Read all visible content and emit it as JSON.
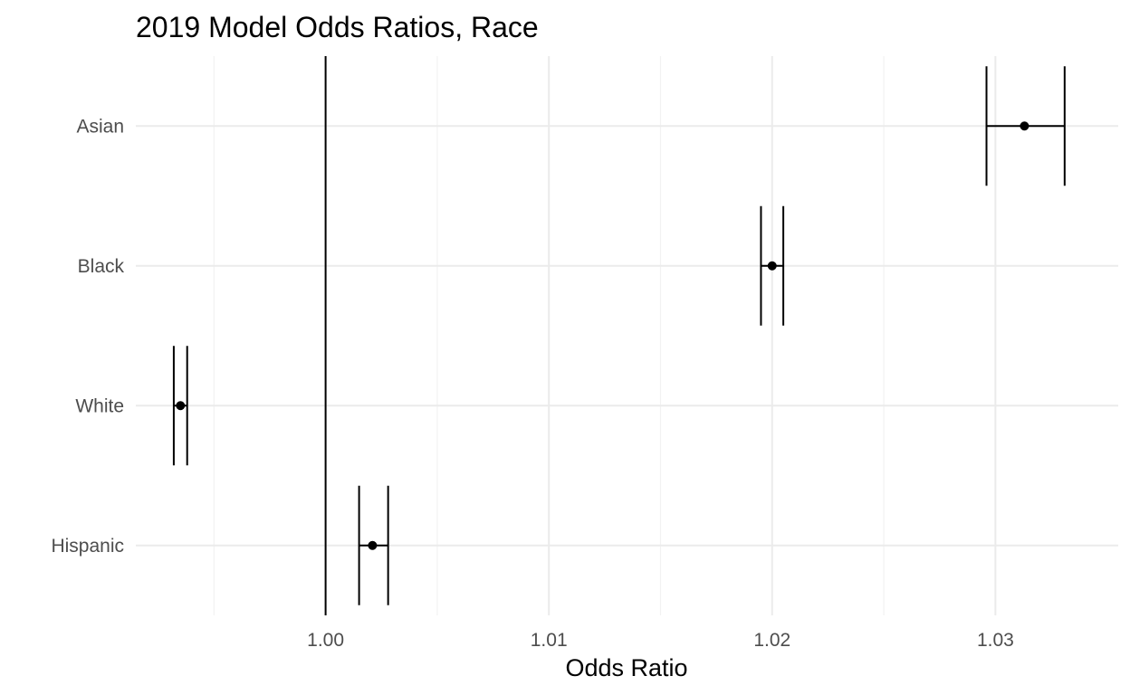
{
  "chart_data": {
    "type": "scatter",
    "title": "2019 Model Odds Ratios, Race",
    "xlabel": "Odds Ratio",
    "ylabel": "",
    "xlim": [
      0.9915,
      1.0355
    ],
    "x_major_ticks": [
      1.0,
      1.01,
      1.02,
      1.03
    ],
    "x_tick_labels": [
      "1.00",
      "1.01",
      "1.02",
      "1.03"
    ],
    "x_minor_ticks": [
      0.995,
      1.005,
      1.015,
      1.025
    ],
    "reference_line": 1.0,
    "grid": true,
    "legend": "none",
    "categories": [
      "Asian",
      "Black",
      "White",
      "Hispanic"
    ],
    "estimates": [
      1.0313,
      1.02,
      0.9935,
      1.0021
    ],
    "ci_lower": [
      1.0296,
      1.0195,
      0.9932,
      1.0015
    ],
    "ci_upper": [
      1.0331,
      1.0205,
      0.9938,
      1.0028
    ]
  }
}
